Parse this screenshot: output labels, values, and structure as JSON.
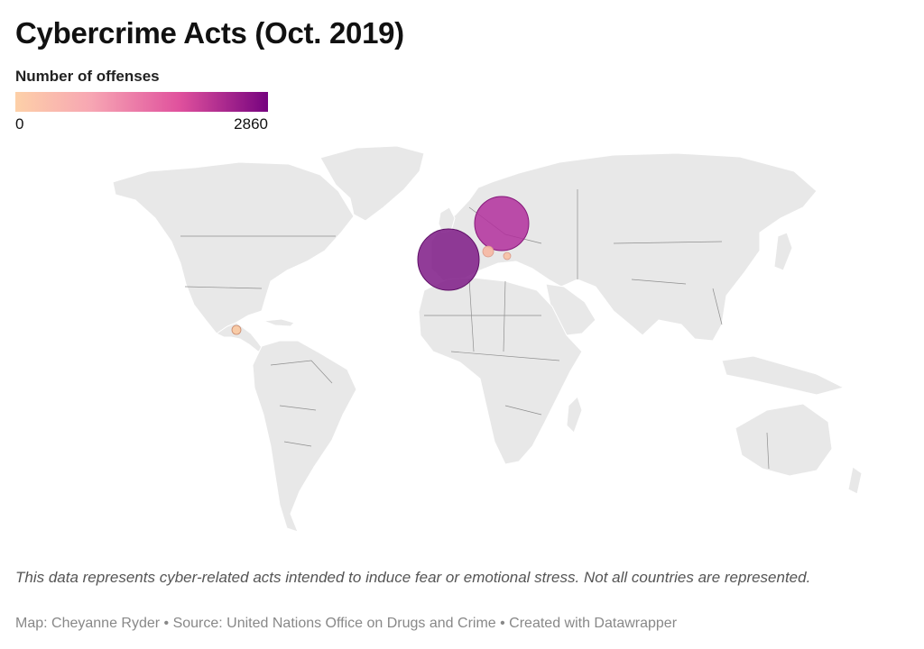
{
  "title": "Cybercrime Acts (Oct. 2019)",
  "legend": {
    "title": "Number of offenses",
    "min_label": "0",
    "max_label": "2860",
    "colors": [
      "#fdd0a8",
      "#f7a6b3",
      "#e0519d",
      "#76037f"
    ]
  },
  "map": {
    "type": "symbol-map",
    "base_color": "#e8e8e8",
    "border_color": "#8e8e8e",
    "markers": [
      {
        "region": "Spain",
        "value": 2860,
        "color": "#7e1a86"
      },
      {
        "region": "Central Europe",
        "value": 2100,
        "color": "#b12f9c"
      },
      {
        "region": "Southern France",
        "value": 60,
        "color": "#f5b9a5"
      },
      {
        "region": "Italy",
        "value": 40,
        "color": "#f7c3a6"
      },
      {
        "region": "Central America",
        "value": 30,
        "color": "#f9c9a3"
      }
    ]
  },
  "notes": {
    "description": "This data represents cyber-related acts intended to induce fear or emotional stress. Not all countries are represented.",
    "byline": "Map: Cheyanne Ryder • Source: United Nations Office on Drugs and Crime • Created with Datawrapper"
  }
}
